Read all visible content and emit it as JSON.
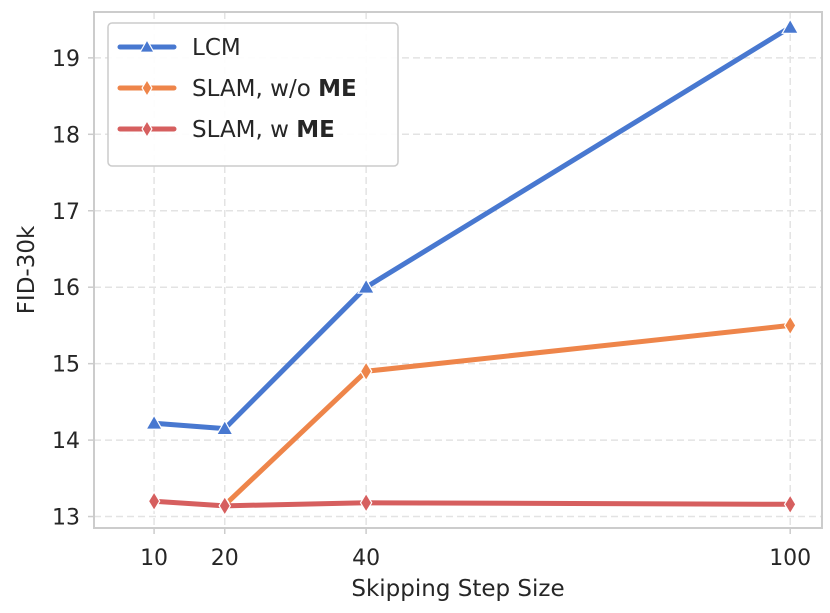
{
  "chart_data": {
    "type": "line",
    "title": "",
    "xlabel": "Skipping Step Size",
    "ylabel": "FID-30k",
    "x": [
      10,
      20,
      40,
      100
    ],
    "x_ticks": [
      10,
      20,
      40,
      100
    ],
    "y_ticks": [
      13,
      14,
      15,
      16,
      17,
      18,
      19
    ],
    "xlim": [
      1.5,
      104.5
    ],
    "ylim": [
      12.85,
      19.6
    ],
    "grid": true,
    "legend_position": "top-left",
    "series": [
      {
        "name": "LCM",
        "name_plain": "LCM",
        "name_bold": "",
        "marker": "triangle",
        "color": "#4878d0",
        "values": [
          14.22,
          14.15,
          16.0,
          19.4
        ]
      },
      {
        "name": "SLAM, w/o ME",
        "name_plain": "SLAM, w/o ",
        "name_bold": "ME",
        "marker": "diamond",
        "color": "#ee854a",
        "values": [
          null,
          13.15,
          14.9,
          15.5
        ]
      },
      {
        "name": "SLAM, w ME",
        "name_plain": "SLAM, w ",
        "name_bold": "ME",
        "marker": "diamond",
        "color": "#d65f5f",
        "values": [
          13.2,
          13.14,
          13.18,
          13.16
        ]
      }
    ]
  }
}
